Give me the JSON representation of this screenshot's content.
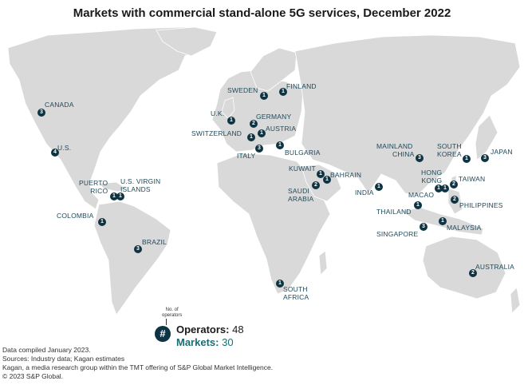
{
  "title": "Markets with commercial stand-alone 5G services, December 2022",
  "colors": {
    "marker": "#0e3342",
    "land": "#d9d9d9",
    "label": "#1f4a5a",
    "markets": "#1a6e73"
  },
  "markers": [
    {
      "id": "canada",
      "count": "3"
    },
    {
      "id": "us",
      "count": "4"
    },
    {
      "id": "puerto-rico",
      "count": "1"
    },
    {
      "id": "us-virgin-islands",
      "count": "1"
    },
    {
      "id": "colombia",
      "count": "1"
    },
    {
      "id": "brazil",
      "count": "3"
    },
    {
      "id": "south-africa",
      "count": "1"
    },
    {
      "id": "sweden",
      "count": "1"
    },
    {
      "id": "finland",
      "count": "1"
    },
    {
      "id": "uk",
      "count": "1"
    },
    {
      "id": "germany",
      "count": "2"
    },
    {
      "id": "switzerland",
      "count": "1"
    },
    {
      "id": "austria",
      "count": "1"
    },
    {
      "id": "italy",
      "count": "3"
    },
    {
      "id": "bulgaria",
      "count": "1"
    },
    {
      "id": "kuwait",
      "count": "1"
    },
    {
      "id": "bahrain",
      "count": "1"
    },
    {
      "id": "saudi-arabia",
      "count": "2"
    },
    {
      "id": "india",
      "count": "1"
    },
    {
      "id": "mainland-china",
      "count": "3"
    },
    {
      "id": "south-korea",
      "count": "1"
    },
    {
      "id": "japan",
      "count": "3"
    },
    {
      "id": "hong-kong",
      "count": "1"
    },
    {
      "id": "macao",
      "count": "1"
    },
    {
      "id": "taiwan",
      "count": "2"
    },
    {
      "id": "philippines",
      "count": "2"
    },
    {
      "id": "thailand",
      "count": "1"
    },
    {
      "id": "singapore",
      "count": "3"
    },
    {
      "id": "malaysia",
      "count": "1"
    },
    {
      "id": "australia",
      "count": "2"
    }
  ],
  "labels": {
    "canada": "CANADA",
    "us": "U.S.",
    "puerto_rico": [
      "PUERTO",
      "RICO"
    ],
    "us_virgin_islands": [
      "U.S. VIRGIN",
      "ISLANDS"
    ],
    "colombia": "COLOMBIA",
    "brazil": "BRAZIL",
    "south_africa": [
      "SOUTH",
      "AFRICA"
    ],
    "sweden": "SWEDEN",
    "finland": "FINLAND",
    "uk": "U.K.",
    "germany": "GERMANY",
    "switzerland": "SWITZERLAND",
    "austria": "AUSTRIA",
    "italy": "ITALY",
    "bulgaria": "BULGARIA",
    "kuwait": "KUWAIT",
    "bahrain": "BAHRAIN",
    "saudi_arabia": [
      "SAUDI",
      "ARABIA"
    ],
    "india": "INDIA",
    "mainland_china": [
      "MAINLAND",
      "CHINA"
    ],
    "south_korea": [
      "SOUTH",
      "KOREA"
    ],
    "japan": "JAPAN",
    "hong_kong": [
      "HONG",
      "KONG"
    ],
    "macao": "MACAO",
    "taiwan": "TAIWAN",
    "philippines": "PHILIPPINES",
    "thailand": "THAILAND",
    "singapore": "SINGAPORE",
    "malaysia": "MALAYSIA",
    "australia": "AUSTRALIA"
  },
  "legend": {
    "symbol": "#",
    "note": [
      "No. of",
      "operators"
    ],
    "operators_label": "Operators:",
    "operators_value": "48",
    "markets_label": "Markets:",
    "markets_value": "30"
  },
  "footer": [
    "Data compiled January 2023.",
    "Sources: Industry data; Kagan estimates",
    "Kagan, a media research group within the TMT offering of S&P Global Market Intelligence.",
    "© 2023 S&P Global."
  ]
}
